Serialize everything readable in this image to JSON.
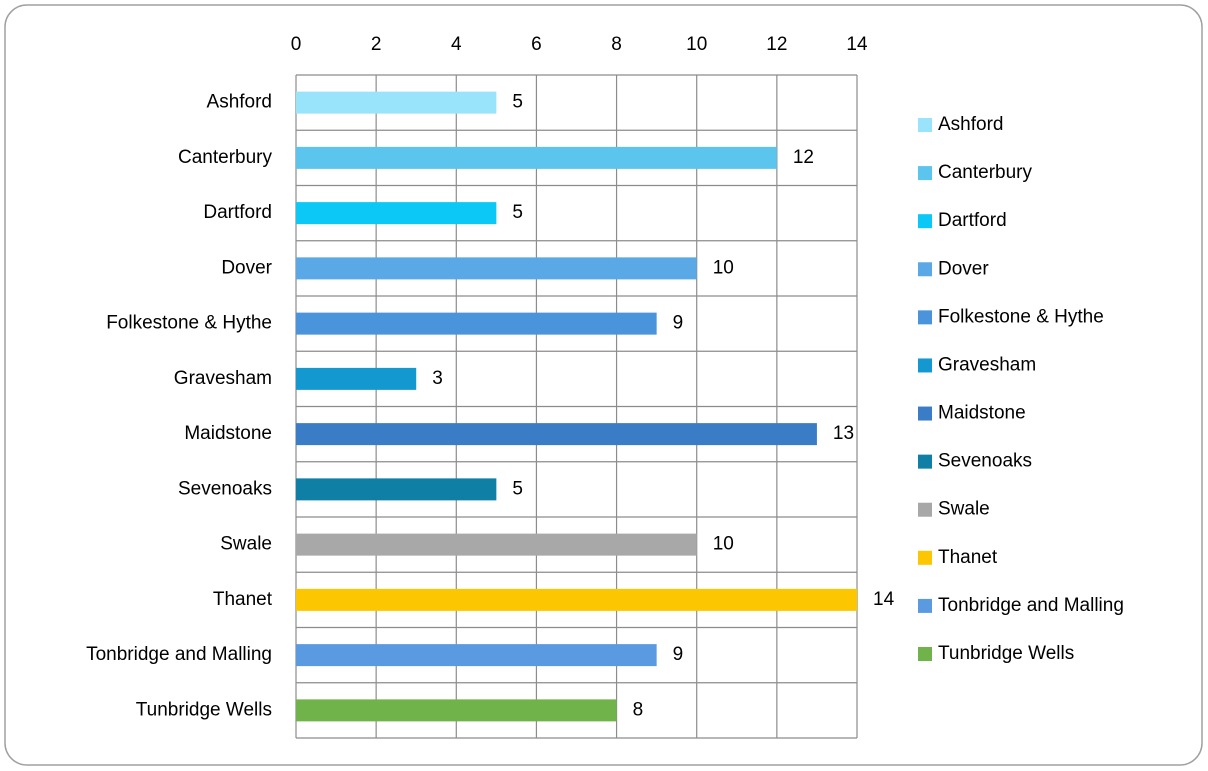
{
  "chart_data": {
    "type": "bar",
    "orientation": "horizontal",
    "axis_position": "top",
    "categories": [
      "Ashford",
      "Canterbury",
      "Dartford",
      "Dover",
      "Folkestone & Hythe",
      "Gravesham",
      "Maidstone",
      "Sevenoaks",
      "Swale",
      "Thanet",
      "Tonbridge and Malling",
      "Tunbridge Wells"
    ],
    "values": [
      5,
      12,
      5,
      10,
      9,
      3,
      13,
      5,
      10,
      14,
      9,
      8
    ],
    "colors": [
      "#99e4fb",
      "#5bc5ee",
      "#0bc8f6",
      "#5aa8e6",
      "#4a94dc",
      "#1399cf",
      "#3a7cc5",
      "#0f7fa6",
      "#a8a8a8",
      "#fcc600",
      "#5a9ae0",
      "#6fb34a"
    ],
    "xlim": [
      0,
      14
    ],
    "xticks": [
      0,
      2,
      4,
      6,
      8,
      10,
      12,
      14
    ],
    "grid": true,
    "legend": "right"
  }
}
